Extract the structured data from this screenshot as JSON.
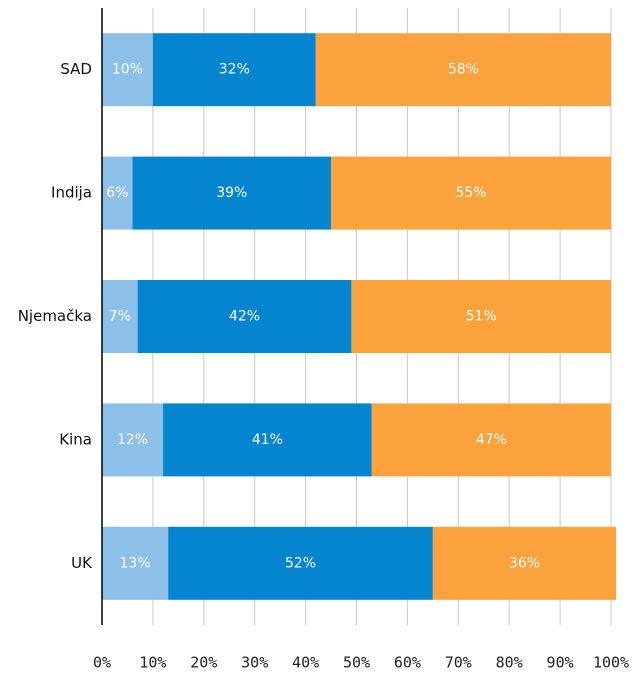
{
  "chart_data": {
    "type": "stacked-bar-horizontal",
    "categories": [
      "SAD",
      "Indija",
      "Njemačka",
      "Kina",
      "UK"
    ],
    "series": [
      {
        "color": "#8cc0e8",
        "values": [
          10,
          6,
          7,
          12,
          13
        ],
        "value_labels": [
          "10%",
          "6%",
          "7%",
          "12%",
          "13%"
        ]
      },
      {
        "color": "#0585cf",
        "values": [
          32,
          39,
          42,
          41,
          52
        ],
        "value_labels": [
          "32%",
          "39%",
          "42%",
          "41%",
          "52%"
        ]
      },
      {
        "color": "#fba23d",
        "values": [
          58,
          55,
          51,
          47,
          36
        ],
        "value_labels": [
          "58%",
          "55%",
          "51%",
          "47%",
          "36%"
        ]
      }
    ],
    "xlim": [
      0,
      100
    ],
    "xticks": [
      {
        "value": 0,
        "label": "0%"
      },
      {
        "value": 10,
        "label": "10%"
      },
      {
        "value": 20,
        "label": "20%"
      },
      {
        "value": 30,
        "label": "30%"
      },
      {
        "value": 40,
        "label": "40%"
      },
      {
        "value": 50,
        "label": "50%"
      },
      {
        "value": 60,
        "label": "60%"
      },
      {
        "value": 70,
        "label": "70%"
      },
      {
        "value": 80,
        "label": "80%"
      },
      {
        "value": 90,
        "label": "90%"
      },
      {
        "value": 100,
        "label": "100%"
      }
    ],
    "grid": true
  }
}
